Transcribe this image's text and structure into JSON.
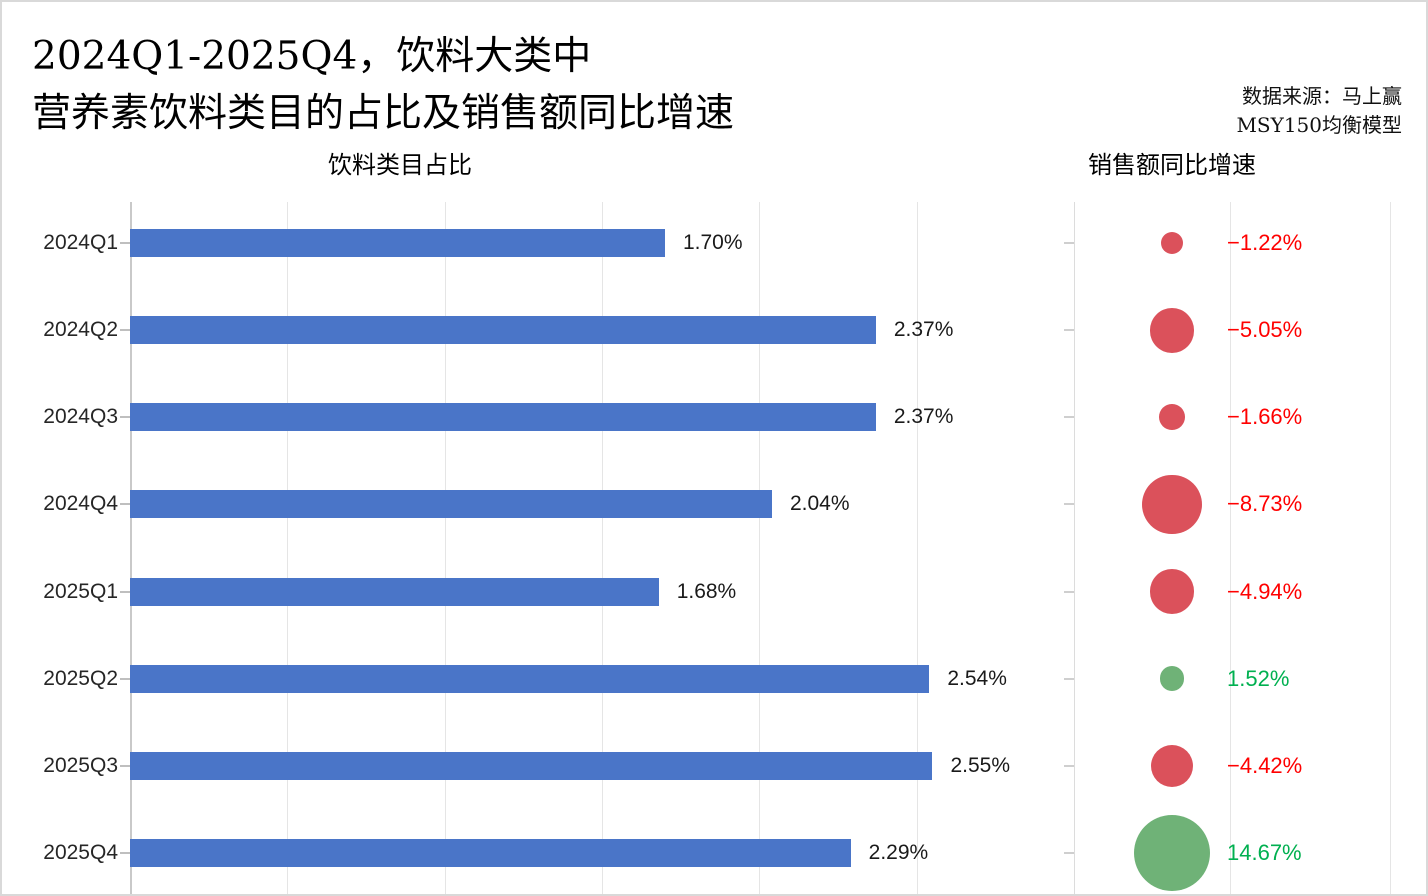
{
  "header": {
    "title_line1": "2024Q1-2025Q4，饮料大类中",
    "title_line2": "营养素饮料类目的占比及销售额同比增速",
    "source_line1": "数据来源：马上赢",
    "source_line2": "MSY150均衡模型"
  },
  "panels": {
    "left_title": "饮料类目占比",
    "right_title": "销售额同比增速"
  },
  "colors": {
    "bar_blue": "#4A75C8",
    "bubble_negative": "#DB515B",
    "bubble_positive": "#6FB277",
    "text_negative": "#FF0000",
    "text_positive": "#00B050",
    "axis_line": "#C9C9C9",
    "right_axis_line": "#DCDCDC",
    "gridline": "#E5E5E5"
  },
  "chart_data": {
    "type": "bar",
    "orientation": "horizontal",
    "title": "2024Q1-2025Q4，饮料大类中营养素饮料类目的占比及销售额同比增速",
    "categories": [
      "2024Q1",
      "2024Q2",
      "2024Q3",
      "2024Q4",
      "2025Q1",
      "2025Q2",
      "2025Q3",
      "2025Q4"
    ],
    "series": [
      {
        "name": "饮料类目占比",
        "chart": "bar",
        "unit": "%",
        "values": [
          1.7,
          2.37,
          2.37,
          2.04,
          1.68,
          2.54,
          2.55,
          2.29
        ],
        "labels": [
          "1.70%",
          "2.37%",
          "2.37%",
          "2.04%",
          "1.68%",
          "2.54%",
          "2.55%",
          "2.29%"
        ]
      },
      {
        "name": "销售额同比增速",
        "chart": "bubble",
        "unit": "%",
        "values": [
          -1.22,
          -5.05,
          -1.66,
          -8.73,
          -4.94,
          1.52,
          -4.42,
          14.67
        ],
        "labels": [
          "−1.22%",
          "−5.05%",
          "−1.66%",
          "−8.73%",
          "−4.94%",
          "1.52%",
          "−4.42%",
          "14.67%"
        ],
        "size_encoding": "bubble area proportional to |value|",
        "color_rule": "red when negative, green when positive"
      }
    ],
    "x_axis": {
      "min": 0,
      "max": 2.5,
      "gridline_step": 0.5,
      "tick_labels_visible": false
    },
    "grid": true,
    "legend": "none"
  }
}
